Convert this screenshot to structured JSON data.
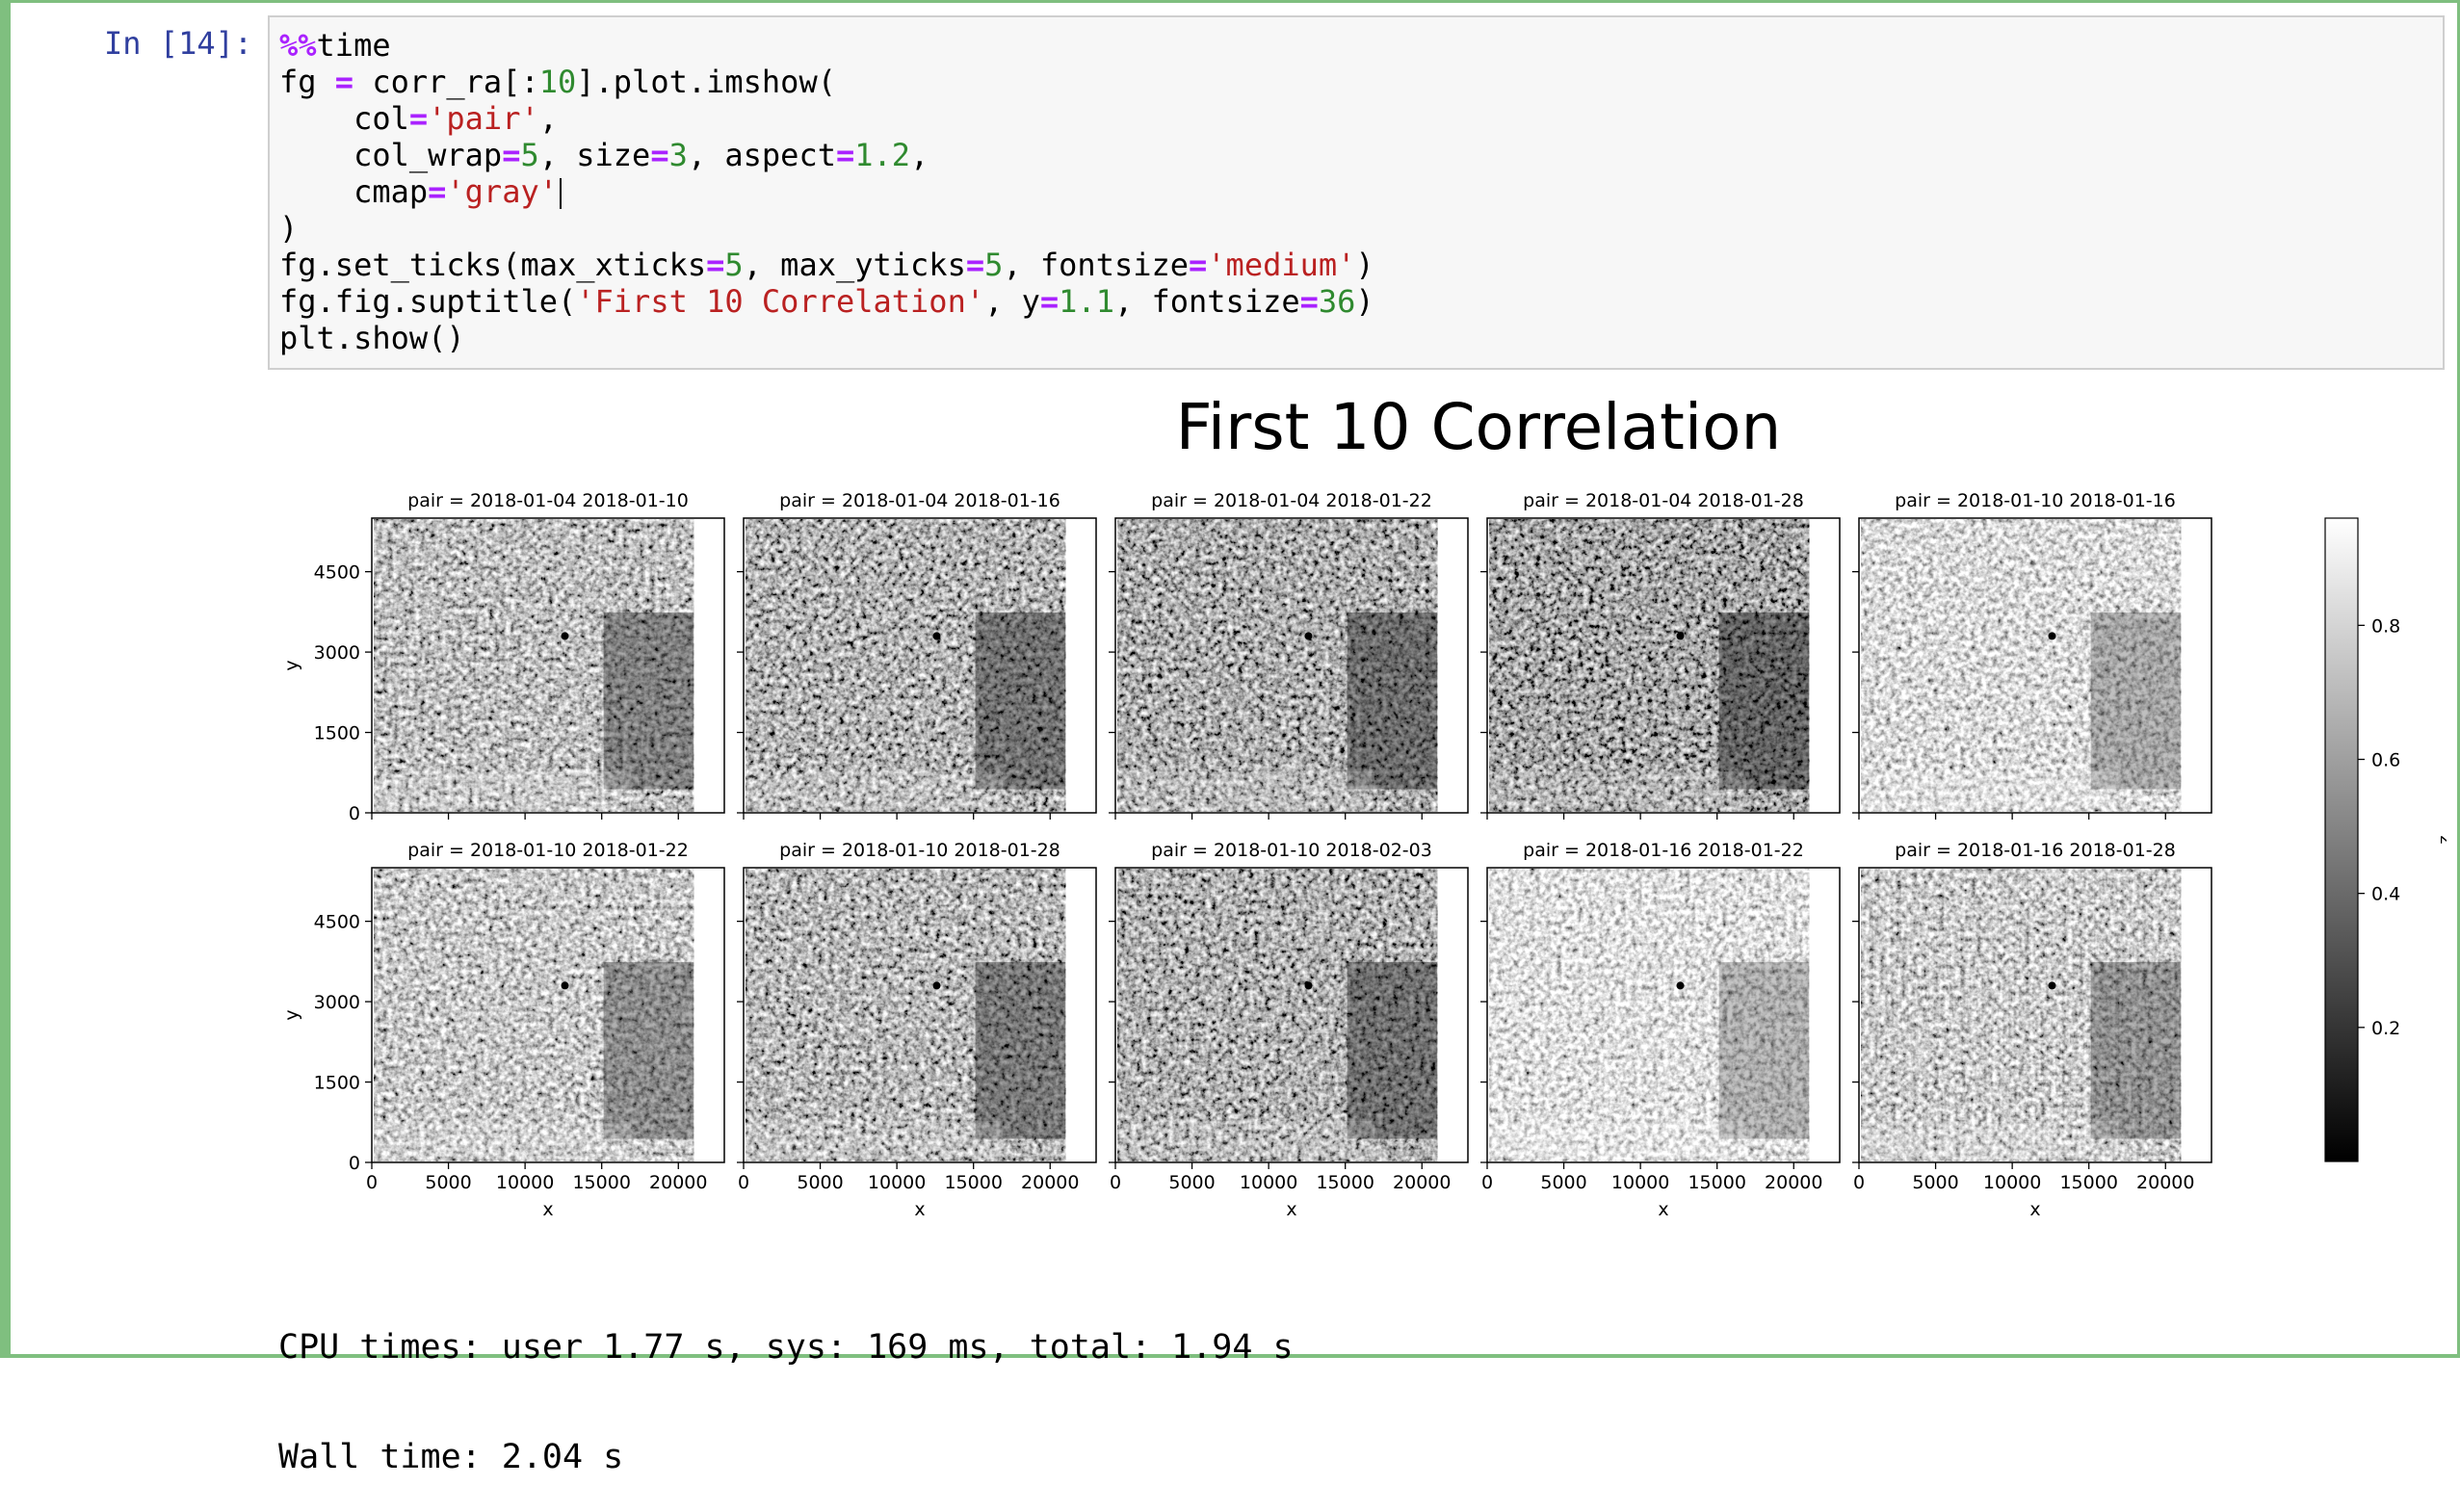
{
  "prompt": "In [14]:",
  "code_lines": [
    [
      [
        "kw",
        "%%"
      ],
      [
        "t",
        "time"
      ]
    ],
    [
      [
        "t",
        "fg "
      ],
      [
        "op",
        "="
      ],
      [
        "t",
        " corr_ra[:"
      ],
      [
        "num",
        "10"
      ],
      [
        "t",
        "].plot.imshow("
      ]
    ],
    [
      [
        "t",
        "    col"
      ],
      [
        "op",
        "="
      ],
      [
        "str",
        "'pair'"
      ],
      [
        "t",
        ","
      ]
    ],
    [
      [
        "t",
        "    col_wrap"
      ],
      [
        "op",
        "="
      ],
      [
        "num",
        "5"
      ],
      [
        "t",
        ", size"
      ],
      [
        "op",
        "="
      ],
      [
        "num",
        "3"
      ],
      [
        "t",
        ", aspect"
      ],
      [
        "op",
        "="
      ],
      [
        "num",
        "1.2"
      ],
      [
        "t",
        ","
      ]
    ],
    [
      [
        "t",
        "    cmap"
      ],
      [
        "op",
        "="
      ],
      [
        "str",
        "'gray'"
      ]
    ],
    [
      [
        "t",
        ")"
      ]
    ],
    [
      [
        "t",
        "fg.set_ticks(max_xticks"
      ],
      [
        "op",
        "="
      ],
      [
        "num",
        "5"
      ],
      [
        "t",
        ", max_yticks"
      ],
      [
        "op",
        "="
      ],
      [
        "num",
        "5"
      ],
      [
        "t",
        ", fontsize"
      ],
      [
        "op",
        "="
      ],
      [
        "str",
        "'medium'"
      ],
      [
        "t",
        ")"
      ]
    ],
    [
      [
        "t",
        "fg.fig.suptitle("
      ],
      [
        "str",
        "'First 10 Correlation'"
      ],
      [
        "t",
        ", y"
      ],
      [
        "op",
        "="
      ],
      [
        "num",
        "1.1"
      ],
      [
        "t",
        ", fontsize"
      ],
      [
        "op",
        "="
      ],
      [
        "num",
        "36"
      ],
      [
        "t",
        ")"
      ]
    ],
    [
      [
        "t",
        "plt.show()"
      ]
    ]
  ],
  "stdout": [
    "CPU times: user 1.77 s, sys: 169 ms, total: 1.94 s",
    "Wall time: 2.04 s"
  ],
  "chart_data": {
    "type": "heatmap",
    "title": "First 10 Correlation",
    "xlabel": "x",
    "ylabel": "y",
    "colorbar_label": "z",
    "cmap": "gray",
    "xticks": [
      0,
      5000,
      10000,
      15000,
      20000
    ],
    "yticks": [
      0,
      1500,
      3000,
      4500
    ],
    "xlim": [
      0,
      23000
    ],
    "ylim": [
      0,
      5500
    ],
    "data_xmax": 21000,
    "colorbar_ticks": [
      0.2,
      0.4,
      0.6,
      0.8
    ],
    "colorbar_range": [
      0.0,
      0.96
    ],
    "panels": [
      {
        "title": "pair = 2018-01-04 2018-01-10",
        "mean": 0.52
      },
      {
        "title": "pair = 2018-01-04 2018-01-16",
        "mean": 0.45
      },
      {
        "title": "pair = 2018-01-04 2018-01-22",
        "mean": 0.42
      },
      {
        "title": "pair = 2018-01-04 2018-01-28",
        "mean": 0.38
      },
      {
        "title": "pair = 2018-01-10 2018-01-16",
        "mean": 0.7
      },
      {
        "title": "pair = 2018-01-10 2018-01-22",
        "mean": 0.58
      },
      {
        "title": "pair = 2018-01-10 2018-01-28",
        "mean": 0.48
      },
      {
        "title": "pair = 2018-01-10 2018-02-03",
        "mean": 0.44
      },
      {
        "title": "pair = 2018-01-16 2018-01-22",
        "mean": 0.74
      },
      {
        "title": "pair = 2018-01-16 2018-01-28",
        "mean": 0.6
      }
    ]
  }
}
